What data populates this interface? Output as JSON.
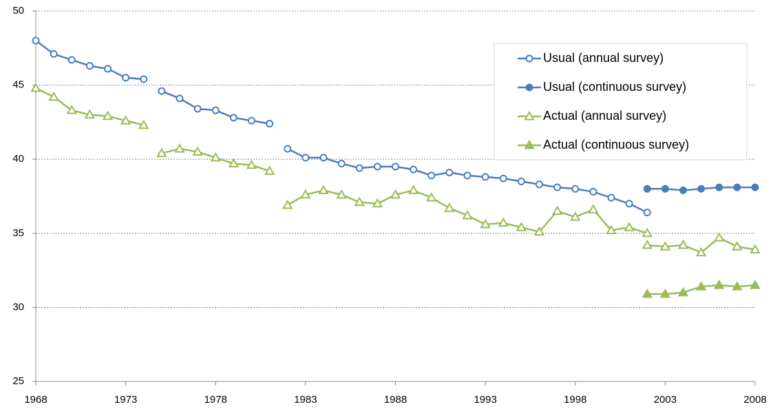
{
  "chart_data": {
    "type": "line",
    "x": [
      1968,
      1969,
      1970,
      1971,
      1972,
      1973,
      1974,
      null,
      1975,
      1976,
      1977,
      1978,
      1979,
      1980,
      1981,
      null,
      1982,
      1983,
      1984,
      1985,
      1986,
      1987,
      1988,
      1989,
      1990,
      1991,
      1992,
      1993,
      1994,
      1995,
      1996,
      1997,
      1998,
      1999,
      2000,
      2001,
      2002,
      null,
      2002,
      2003,
      2004,
      2005,
      2006,
      2007,
      2008
    ],
    "series": [
      {
        "name": "Usual (annual survey)",
        "color": "#4a7ebb",
        "marker": "circle",
        "filled": false,
        "values": [
          48.0,
          47.1,
          46.7,
          46.3,
          46.1,
          45.5,
          45.4,
          null,
          44.6,
          44.1,
          43.4,
          43.3,
          42.8,
          42.6,
          42.4,
          null,
          40.7,
          40.1,
          40.1,
          39.7,
          39.4,
          39.5,
          39.5,
          39.3,
          38.9,
          39.1,
          38.9,
          38.8,
          38.7,
          38.5,
          38.3,
          38.1,
          38.0,
          37.8,
          37.4,
          37.0,
          36.4,
          null,
          null,
          null,
          null,
          null,
          null,
          null,
          null
        ]
      },
      {
        "name": "Usual (continuous survey)",
        "color": "#4a7ebb",
        "marker": "circle",
        "filled": true,
        "values": [
          null,
          null,
          null,
          null,
          null,
          null,
          null,
          null,
          null,
          null,
          null,
          null,
          null,
          null,
          null,
          null,
          null,
          null,
          null,
          null,
          null,
          null,
          null,
          null,
          null,
          null,
          null,
          null,
          null,
          null,
          null,
          null,
          null,
          null,
          null,
          null,
          null,
          null,
          38.0,
          38.0,
          37.9,
          38.0,
          38.1,
          38.1,
          38.1
        ]
      },
      {
        "name": "Actual (annual survey)",
        "color": "#9bbb59",
        "marker": "triangle",
        "filled": false,
        "values": [
          44.8,
          44.2,
          43.3,
          43.0,
          42.9,
          42.6,
          42.3,
          null,
          40.4,
          40.7,
          40.5,
          40.1,
          39.7,
          39.6,
          39.2,
          null,
          36.9,
          37.6,
          37.9,
          37.6,
          37.1,
          37.0,
          37.6,
          37.9,
          37.4,
          36.7,
          36.2,
          35.6,
          35.7,
          35.4,
          35.1,
          36.5,
          36.1,
          36.6,
          35.2,
          35.4,
          35.0,
          null,
          34.2,
          34.1,
          34.2,
          33.7,
          34.7,
          34.1,
          33.9
        ]
      },
      {
        "name": "Actual (continuous survey)",
        "color": "#9bbb59",
        "marker": "triangle",
        "filled": true,
        "values": [
          null,
          null,
          null,
          null,
          null,
          null,
          null,
          null,
          null,
          null,
          null,
          null,
          null,
          null,
          null,
          null,
          null,
          null,
          null,
          null,
          null,
          null,
          null,
          null,
          null,
          null,
          null,
          null,
          null,
          null,
          null,
          null,
          null,
          null,
          null,
          null,
          null,
          null,
          30.9,
          30.9,
          31.0,
          31.4,
          31.5,
          31.4,
          31.5
        ]
      }
    ],
    "xlim": [
      1968,
      2008
    ],
    "xticks": [
      1968,
      1973,
      1978,
      1983,
      1988,
      1993,
      1998,
      2003,
      2008
    ],
    "ylim": [
      25,
      50
    ],
    "yticks": [
      25,
      30,
      35,
      40,
      45,
      50
    ],
    "grid": true,
    "legend": "upper right"
  }
}
